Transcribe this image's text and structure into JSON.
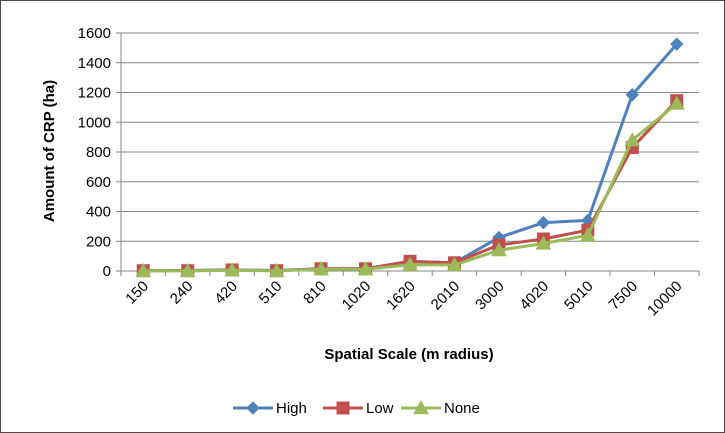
{
  "chart_data": {
    "type": "line",
    "title": "",
    "xlabel": "Spatial Scale (m radius)",
    "ylabel": "Amount of CRP (ha)",
    "categories": [
      "150",
      "240",
      "420",
      "510",
      "810",
      "1020",
      "1620",
      "2010",
      "3000",
      "4020",
      "5010",
      "7500",
      "10000"
    ],
    "ylim": [
      0,
      1600
    ],
    "yticks": [
      0,
      200,
      400,
      600,
      800,
      1000,
      1200,
      1400,
      1600
    ],
    "grid": "horizontal",
    "legend_position": "bottom",
    "series": [
      {
        "name": "High",
        "color": "#4f81bd",
        "marker": "diamond",
        "values": [
          2,
          3,
          8,
          3,
          15,
          15,
          65,
          55,
          225,
          325,
          340,
          1185,
          1525
        ]
      },
      {
        "name": "Low",
        "color": "#c0504d",
        "marker": "square",
        "values": [
          2,
          2,
          7,
          2,
          15,
          15,
          65,
          55,
          175,
          215,
          275,
          830,
          1145
        ]
      },
      {
        "name": "None",
        "color": "#9bbb59",
        "marker": "triangle",
        "values": [
          1,
          1,
          5,
          1,
          12,
          12,
          42,
          40,
          140,
          185,
          240,
          880,
          1125
        ]
      }
    ]
  }
}
